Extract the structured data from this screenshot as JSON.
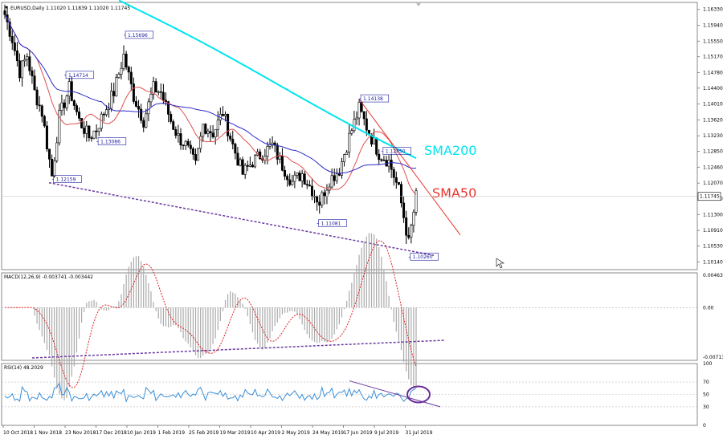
{
  "chart_data": {
    "type": "candlestick",
    "symbol_header": "EURUSD,Daily  1.11020 1.11839 1.11020 1.11745",
    "current_price": "1.11745",
    "price_axis_ticks": [
      "1.16330",
      "1.15940",
      "1.15550",
      "1.15170",
      "1.14780",
      "1.14400",
      "1.14010",
      "1.13620",
      "1.13230",
      "1.12850",
      "1.12460",
      "1.12070",
      "1.11690",
      "1.11300",
      "1.10910",
      "1.10530",
      "1.10140"
    ],
    "price_range": [
      1.0995,
      1.165
    ],
    "price_labels": [
      {
        "text": "1.15696",
        "date_index": 48,
        "value": 1.15696
      },
      {
        "text": "1.14714",
        "date_index": 24,
        "value": 1.14714
      },
      {
        "text": "1.13086",
        "date_index": 37,
        "value": 1.13086
      },
      {
        "text": "1.12159",
        "date_index": 19,
        "value": 1.12159
      },
      {
        "text": "1.14138",
        "date_index": 143,
        "value": 1.14138
      },
      {
        "text": "1.12850",
        "date_index": 152,
        "value": 1.1285
      },
      {
        "text": "1.11081",
        "date_index": 126,
        "value": 1.11081
      },
      {
        "text": "1.10260",
        "date_index": 163,
        "value": 1.1026
      }
    ],
    "indicator_labels": {
      "sma200": "SMA200",
      "sma50": "SMA50"
    },
    "colors": {
      "sma200": "#00e5ee",
      "sma50": "#e8342c",
      "sma_blue": "#2a2ac8",
      "sma_red": "#e05050",
      "rsi": "#3a8fd8",
      "candle": "#000000",
      "trend": "#6a3aa0",
      "macd_signal": "#e02020",
      "annotation": "#e8342c",
      "ellipse": "#6a2a9a"
    },
    "macd": {
      "title": "MACD(12,26,9) -0.003741 -0.003442",
      "ticks": [
        "0.004637",
        "0.00",
        "-0.007132"
      ],
      "range": [
        -0.0076,
        0.005
      ]
    },
    "rsi": {
      "title": "RSI(14) 48.2029",
      "ticks": [
        "100",
        "70",
        "50",
        "30",
        "0"
      ],
      "range": [
        0,
        100
      ]
    },
    "x_ticks": [
      "10 Oct 2018",
      "1 Nov 2018",
      "23 Nov 2018",
      "17 Dec 2018",
      "10 Jan 2019",
      "1 Feb 2019",
      "25 Feb 2019",
      "19 Mar 2019",
      "10 Apr 2019",
      "2 May 2019",
      "24 May 2019",
      "17 Jun 2019",
      "9 Jul 2019",
      "31 Jul 2019"
    ],
    "price_series_keypoints": [
      [
        0,
        1.162
      ],
      [
        3,
        1.156
      ],
      [
        6,
        1.148
      ],
      [
        9,
        1.152
      ],
      [
        12,
        1.143
      ],
      [
        15,
        1.138
      ],
      [
        19,
        1.1225
      ],
      [
        22,
        1.137
      ],
      [
        26,
        1.144
      ],
      [
        30,
        1.136
      ],
      [
        34,
        1.132
      ],
      [
        37,
        1.134
      ],
      [
        40,
        1.138
      ],
      [
        44,
        1.143
      ],
      [
        48,
        1.152
      ],
      [
        52,
        1.142
      ],
      [
        56,
        1.136
      ],
      [
        60,
        1.144
      ],
      [
        63,
        1.143
      ],
      [
        67,
        1.136
      ],
      [
        70,
        1.132
      ],
      [
        73,
        1.13
      ],
      [
        77,
        1.125
      ],
      [
        80,
        1.135
      ],
      [
        84,
        1.133
      ],
      [
        88,
        1.138
      ],
      [
        92,
        1.13
      ],
      [
        96,
        1.123
      ],
      [
        100,
        1.126
      ],
      [
        104,
        1.128
      ],
      [
        108,
        1.13
      ],
      [
        112,
        1.125
      ],
      [
        116,
        1.121
      ],
      [
        120,
        1.123
      ],
      [
        124,
        1.119
      ],
      [
        127,
        1.116
      ],
      [
        131,
        1.1215
      ],
      [
        135,
        1.124
      ],
      [
        139,
        1.132
      ],
      [
        143,
        1.139
      ],
      [
        147,
        1.133
      ],
      [
        151,
        1.128
      ],
      [
        155,
        1.126
      ],
      [
        159,
        1.119
      ],
      [
        163,
        1.106
      ],
      [
        166,
        1.1174
      ]
    ]
  }
}
